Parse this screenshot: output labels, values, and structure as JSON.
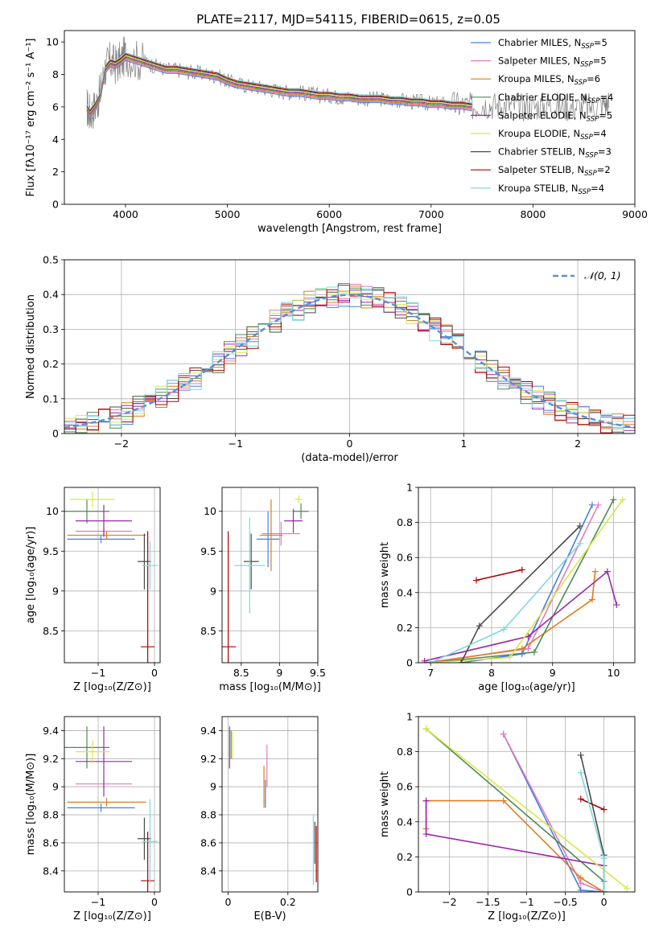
{
  "figure": {
    "title": "PLATE=2117, MJD=54115, FIBERID=0615, z=0.05"
  },
  "model_colors": [
    "#4a7ee0",
    "#e27cba",
    "#e07c20",
    "#4e8a55",
    "#9a2aa8",
    "#d8e84a",
    "#4a4a4a",
    "#b00000",
    "#7fd8de"
  ],
  "chart_data": [
    {
      "id": "spectrum",
      "type": "line",
      "title": "PLATE=2117, MJD=54115, FIBERID=0615, z=0.05",
      "xlabel": "wavelength [Angstrom, rest frame]",
      "ylabel": "Flux [fλ10⁻¹⁷ erg cm⁻² s⁻¹ A⁻¹]",
      "xlim": [
        3400,
        9000
      ],
      "ylim": [
        0,
        10.7
      ],
      "xticks": [
        4000,
        5000,
        6000,
        7000,
        8000,
        9000
      ],
      "yticks": [
        0,
        2,
        4,
        6,
        8,
        10
      ],
      "grid": false,
      "legend_position": "top-right",
      "data_series": {
        "name": "data",
        "color": "#808080",
        "x": [
          3620,
          3650,
          3700,
          3750,
          3800,
          3850,
          3900,
          3950,
          4000,
          4100,
          4200,
          4300,
          4400,
          4500,
          4600,
          4700,
          4800,
          4900,
          5000,
          5100,
          5200,
          5300,
          5400,
          5500,
          5600,
          5700,
          5800,
          5900,
          6000,
          6100,
          6200,
          6300,
          6400,
          6500,
          6600,
          6700,
          6800,
          6900,
          7000,
          7100,
          7200,
          7300,
          7400,
          7500,
          7600,
          7700,
          7800,
          7900,
          8000,
          8100,
          8200,
          8300,
          8400,
          8500,
          8600,
          8700,
          8750
        ],
        "y": [
          6.0,
          5.6,
          6.0,
          6.8,
          8.4,
          8.8,
          8.6,
          8.8,
          9.2,
          8.9,
          8.7,
          8.5,
          8.3,
          8.3,
          8.2,
          8.1,
          8.0,
          7.9,
          7.6,
          7.4,
          7.3,
          7.2,
          7.1,
          7.0,
          6.9,
          6.9,
          6.8,
          6.7,
          6.7,
          6.6,
          6.6,
          6.5,
          6.5,
          6.5,
          6.4,
          6.4,
          6.3,
          6.3,
          6.2,
          6.2,
          6.1,
          6.1,
          6.0,
          6.2,
          6.1,
          6.1,
          6.1,
          6.0,
          6.0,
          6.1,
          6.1,
          6.0,
          6.0,
          6.0,
          6.0,
          6.2,
          6.2
        ]
      },
      "model_x": [
        3620,
        3650,
        3700,
        3750,
        3800,
        3850,
        3900,
        3950,
        4000,
        4100,
        4200,
        4300,
        4400,
        4500,
        4600,
        4700,
        4800,
        4900,
        5000,
        5100,
        5200,
        5300,
        5400,
        5500,
        5600,
        5700,
        5800,
        5900,
        6000,
        6100,
        6200,
        6300,
        6400,
        6500,
        6600,
        6700,
        6800,
        6900,
        7000,
        7100,
        7200,
        7300,
        7400
      ],
      "model_y": [
        5.9,
        5.6,
        6.0,
        6.6,
        8.3,
        8.7,
        8.6,
        8.8,
        9.1,
        8.9,
        8.7,
        8.5,
        8.3,
        8.3,
        8.2,
        8.1,
        8.0,
        7.9,
        7.6,
        7.4,
        7.3,
        7.2,
        7.1,
        7.0,
        6.9,
        6.9,
        6.8,
        6.7,
        6.7,
        6.6,
        6.6,
        6.5,
        6.5,
        6.5,
        6.4,
        6.4,
        6.3,
        6.3,
        6.2,
        6.2,
        6.1,
        6.1,
        6.0
      ],
      "series": [
        {
          "label_prefix": "Chabrier MILES, N",
          "label_sub": "SSP",
          "label_suffix": "=5",
          "color": "#4a7ee0"
        },
        {
          "label_prefix": "Salpeter MILES, N",
          "label_sub": "SSP",
          "label_suffix": "=5",
          "color": "#e27cba"
        },
        {
          "label_prefix": "Kroupa MILES, N",
          "label_sub": "SSP",
          "label_suffix": "=6",
          "color": "#e07c20"
        },
        {
          "label_prefix": "Chabrier ELODIE, N",
          "label_sub": "SSP",
          "label_suffix": "=4",
          "color": "#4e8a55"
        },
        {
          "label_prefix": "Salpeter ELODIE, N",
          "label_sub": "SSP",
          "label_suffix": "=5",
          "color": "#9a2aa8"
        },
        {
          "label_prefix": "Kroupa ELODIE, N",
          "label_sub": "SSP",
          "label_suffix": "=4",
          "color": "#d8e84a"
        },
        {
          "label_prefix": "Chabrier STELIB, N",
          "label_sub": "SSP",
          "label_suffix": "=3",
          "color": "#4a4a4a"
        },
        {
          "label_prefix": "Salpeter STELIB, N",
          "label_sub": "SSP",
          "label_suffix": "=2",
          "color": "#b00000"
        },
        {
          "label_prefix": "Kroupa STELIB, N",
          "label_sub": "SSP",
          "label_suffix": "=4",
          "color": "#7fd8de"
        }
      ]
    },
    {
      "id": "residuals",
      "type": "histogram",
      "xlabel": "(data-model)/error",
      "ylabel": "Normed distribution",
      "xlim": [
        -2.5,
        2.5
      ],
      "ylim": [
        0,
        0.5
      ],
      "xticks": [
        -2,
        -1,
        0,
        1,
        2
      ],
      "yticks": [
        0.0,
        0.1,
        0.2,
        0.3,
        0.4,
        0.5
      ],
      "grid": true,
      "legend_position": "top-right",
      "bin_width": 0.1,
      "reference_curve": {
        "label": "𝒩(0, 1)",
        "color": "#5a8fd8",
        "style": "dashed",
        "mean": 0,
        "sigma": 1
      }
    },
    {
      "id": "age_vs_z",
      "type": "errorbar",
      "xlabel": "Z [log₁₀(Z/Z⊙)]",
      "ylabel": "age  [log₁₀(age/yr)]",
      "xlim": [
        -1.6,
        0.1
      ],
      "ylim": [
        8.1,
        10.3
      ],
      "xticks": [
        -1,
        0
      ],
      "yticks": [
        8.5,
        9.0,
        9.5,
        10.0
      ],
      "points": [
        {
          "x": -0.95,
          "y": 9.65,
          "xerr": 0.6,
          "yerr": 0.05
        },
        {
          "x": -0.9,
          "y": 9.75,
          "xerr": 0.5,
          "yerr": 0.05
        },
        {
          "x": -0.85,
          "y": 9.7,
          "xerr": 0.7,
          "yerr": 0.05
        },
        {
          "x": -1.2,
          "y": 10.0,
          "xerr": 0.4,
          "yerr": 0.15
        },
        {
          "x": -0.9,
          "y": 9.88,
          "xerr": 0.5,
          "yerr": 0.2
        },
        {
          "x": -1.1,
          "y": 10.15,
          "xerr": 0.4,
          "yerr": 0.1
        },
        {
          "x": -0.18,
          "y": 9.37,
          "xerr": 0.12,
          "yerr": 0.35
        },
        {
          "x": -0.12,
          "y": 8.3,
          "xerr": 0.12,
          "yerr": 1.45
        },
        {
          "x": -0.08,
          "y": 9.32,
          "xerr": 0.14,
          "yerr": 0.3
        }
      ]
    },
    {
      "id": "age_vs_mass",
      "type": "errorbar",
      "xlabel": "mass [log₁₀(M/M⊙)]",
      "ylabel": "",
      "xlim": [
        8.25,
        9.5
      ],
      "ylim": [
        8.1,
        10.3
      ],
      "xticks": [
        8.5,
        9.0,
        9.5
      ],
      "yticks": [
        8.5,
        9.0,
        9.5,
        10.0
      ],
      "points": [
        {
          "x": 8.85,
          "y": 9.65,
          "xerr": 0.15,
          "yerr": 0.35
        },
        {
          "x": 9.02,
          "y": 9.72,
          "xerr": 0.25,
          "yerr": 0.15
        },
        {
          "x": 8.89,
          "y": 9.7,
          "xerr": 0.15,
          "yerr": 0.45
        },
        {
          "x": 9.28,
          "y": 10.0,
          "xerr": 0.1,
          "yerr": 0.1
        },
        {
          "x": 9.18,
          "y": 9.88,
          "xerr": 0.12,
          "yerr": 0.15
        },
        {
          "x": 9.25,
          "y": 10.15,
          "xerr": 0.05,
          "yerr": 0.05
        },
        {
          "x": 8.63,
          "y": 9.37,
          "xerr": 0.1,
          "yerr": 0.35
        },
        {
          "x": 8.33,
          "y": 8.3,
          "xerr": 0.1,
          "yerr": 1.45
        },
        {
          "x": 8.61,
          "y": 9.32,
          "xerr": 0.2,
          "yerr": 0.6
        }
      ]
    },
    {
      "id": "mass_weight_vs_age",
      "type": "line",
      "xlabel": "age  [log₁₀(age/yr)]",
      "ylabel": "mass weight",
      "xlim": [
        6.8,
        10.35
      ],
      "ylim": [
        0,
        1.0
      ],
      "xticks": [
        7,
        8,
        9,
        10
      ],
      "yticks": [
        0.0,
        0.2,
        0.4,
        0.6,
        0.8,
        1.0
      ],
      "grid": true,
      "series": [
        {
          "x": [
            7.5,
            8.5,
            9.65
          ],
          "y": [
            0.0,
            0.05,
            0.9
          ]
        },
        {
          "x": [
            6.9,
            8.6,
            9.75
          ],
          "y": [
            0.0,
            0.08,
            0.9
          ]
        },
        {
          "x": [
            7.0,
            8.5,
            9.65,
            9.7
          ],
          "y": [
            0.0,
            0.08,
            0.36,
            0.52
          ]
        },
        {
          "x": [
            7.0,
            8.7,
            10.0
          ],
          "y": [
            0.0,
            0.06,
            0.93
          ]
        },
        {
          "x": [
            6.9,
            8.6,
            9.9,
            10.05
          ],
          "y": [
            0.01,
            0.15,
            0.52,
            0.33
          ]
        },
        {
          "x": [
            7.0,
            8.3,
            10.15
          ],
          "y": [
            0.0,
            0.03,
            0.93
          ]
        },
        {
          "x": [
            7.5,
            7.8,
            9.45
          ],
          "y": [
            0.0,
            0.21,
            0.78
          ]
        },
        {
          "x": [
            7.75,
            8.5
          ],
          "y": [
            0.47,
            0.53
          ]
        },
        {
          "x": [
            7.0,
            8.2,
            9.45
          ],
          "y": [
            0.0,
            0.19,
            0.68
          ]
        }
      ]
    },
    {
      "id": "mass_vs_z",
      "type": "errorbar",
      "xlabel": "Z [log₁₀(Z/Z⊙)]",
      "ylabel": "mass [log₁₀(M/M⊙)]",
      "xlim": [
        -1.6,
        0.1
      ],
      "ylim": [
        8.25,
        9.5
      ],
      "xticks": [
        -1,
        0
      ],
      "yticks": [
        8.4,
        8.6,
        8.8,
        9.0,
        9.2,
        9.4
      ],
      "points": [
        {
          "x": -0.95,
          "y": 8.85,
          "xerr": 0.6,
          "yerr": 0.03
        },
        {
          "x": -0.9,
          "y": 9.02,
          "xerr": 0.5,
          "yerr": 0.03
        },
        {
          "x": -0.85,
          "y": 8.89,
          "xerr": 0.7,
          "yerr": 0.03
        },
        {
          "x": -1.2,
          "y": 9.28,
          "xerr": 0.4,
          "yerr": 0.15
        },
        {
          "x": -0.9,
          "y": 9.18,
          "xerr": 0.5,
          "yerr": 0.25
        },
        {
          "x": -1.1,
          "y": 9.25,
          "xerr": 0.3,
          "yerr": 0.08
        },
        {
          "x": -0.18,
          "y": 8.63,
          "xerr": 0.12,
          "yerr": 0.15
        },
        {
          "x": -0.12,
          "y": 8.33,
          "xerr": 0.12,
          "yerr": 0.35
        },
        {
          "x": -0.08,
          "y": 8.61,
          "xerr": 0.14,
          "yerr": 0.3
        }
      ]
    },
    {
      "id": "mass_vs_ebv",
      "type": "errorbar",
      "xlabel": "E(B-V)",
      "ylabel": "",
      "xlim": [
        -0.02,
        0.3
      ],
      "ylim": [
        8.25,
        9.5
      ],
      "xticks": [
        0.0,
        0.2
      ],
      "yticks": [
        8.4,
        8.6,
        8.8,
        9.0,
        9.2,
        9.4
      ],
      "points": [
        {
          "x": 0.125,
          "y": 8.95,
          "xerr": 0,
          "yerr": 0.1
        },
        {
          "x": 0.13,
          "y": 9.15,
          "xerr": 0,
          "yerr": 0.15
        },
        {
          "x": 0.12,
          "y": 9.0,
          "xerr": 0,
          "yerr": 0.15
        },
        {
          "x": 0.01,
          "y": 9.3,
          "xerr": 0,
          "yerr": 0.1
        },
        {
          "x": 0.005,
          "y": 9.28,
          "xerr": 0,
          "yerr": 0.15
        },
        {
          "x": 0.015,
          "y": 9.29,
          "xerr": 0,
          "yerr": 0.1
        },
        {
          "x": 0.29,
          "y": 8.6,
          "xerr": 0,
          "yerr": 0.15
        },
        {
          "x": 0.295,
          "y": 8.52,
          "xerr": 0,
          "yerr": 0.2
        },
        {
          "x": 0.285,
          "y": 8.55,
          "xerr": 0,
          "yerr": 0.25
        }
      ]
    },
    {
      "id": "mass_weight_vs_z",
      "type": "line",
      "xlabel": "Z [log₁₀(Z/Z⊙)]",
      "ylabel": "mass weight",
      "xlim": [
        -2.4,
        0.4
      ],
      "ylim": [
        0,
        1.0
      ],
      "xticks": [
        -2.0,
        -1.5,
        -1.0,
        -0.5,
        0.0
      ],
      "yticks": [
        0.0,
        0.2,
        0.4,
        0.6,
        0.8,
        1.0
      ],
      "grid": true,
      "series": [
        {
          "x": [
            -1.3,
            -0.3,
            0.0
          ],
          "y": [
            0.9,
            0.01,
            0.0
          ]
        },
        {
          "x": [
            -1.3,
            -0.3,
            0.0
          ],
          "y": [
            0.9,
            0.05,
            0.0
          ]
        },
        {
          "x": [
            -2.3,
            -2.3,
            -1.3,
            -0.3,
            0.0
          ],
          "y": [
            0.36,
            0.52,
            0.52,
            0.08,
            0.0
          ]
        },
        {
          "x": [
            -2.3,
            0.0,
            0.0
          ],
          "y": [
            0.93,
            0.06,
            0.0
          ]
        },
        {
          "x": [
            -2.3,
            -2.3,
            0.0
          ],
          "y": [
            0.52,
            0.33,
            0.15
          ]
        },
        {
          "x": [
            -2.3,
            0.3
          ],
          "y": [
            0.93,
            0.02
          ]
        },
        {
          "x": [
            -0.3,
            0.0,
            0.0
          ],
          "y": [
            0.78,
            0.21,
            0.0
          ]
        },
        {
          "x": [
            -0.3,
            0.0
          ],
          "y": [
            0.53,
            0.47
          ]
        },
        {
          "x": [
            -0.3,
            0.0,
            0.0
          ],
          "y": [
            0.68,
            0.19,
            0.0
          ]
        }
      ]
    }
  ]
}
